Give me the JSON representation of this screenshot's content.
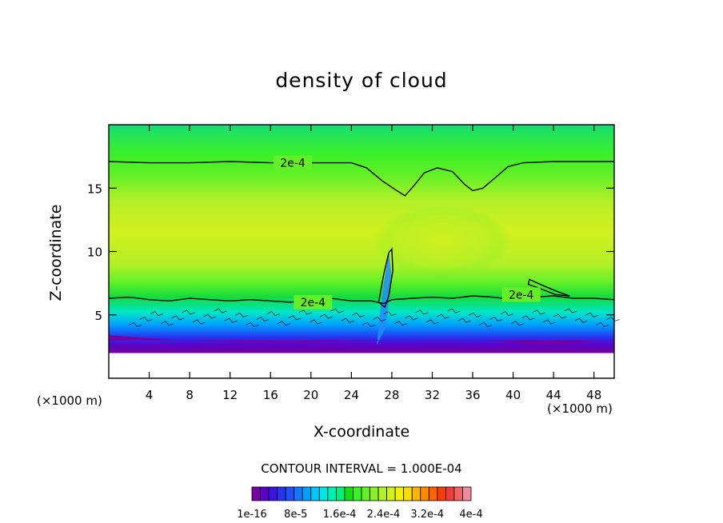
{
  "chart_data": {
    "type": "heatmap",
    "title": "density of cloud",
    "xlabel": "X-coordinate",
    "ylabel": "Z-coordinate",
    "x_unit_label": "(×1000 m)",
    "xlim": [
      0,
      50
    ],
    "ylim": [
      0,
      20
    ],
    "x_ticks": [
      4,
      8,
      12,
      16,
      20,
      24,
      28,
      32,
      36,
      40,
      44,
      48
    ],
    "y_ticks": [
      5,
      10,
      15
    ],
    "contour_interval_text": "CONTOUR INTERVAL = 1.000E-04",
    "contour_level_label": "2e-4",
    "colorbar": {
      "labels": [
        "1e-16",
        "8e-5",
        "1.6e-4",
        "2.4e-4",
        "3.2e-4",
        "4e-4"
      ],
      "colors": [
        "#7800a0",
        "#5a00c8",
        "#3c14dc",
        "#2832f0",
        "#1e50ff",
        "#1478ff",
        "#00a0ff",
        "#00c8ff",
        "#00e6e6",
        "#00f0b4",
        "#00f078",
        "#14dc14",
        "#3cf028",
        "#64f028",
        "#8cf028",
        "#b4f028",
        "#d2f01e",
        "#f0f000",
        "#ffdc00",
        "#ffb400",
        "#ff8c00",
        "#ff6400",
        "#ff3c00",
        "#f03c3c",
        "#f06464",
        "#f08ca0"
      ]
    }
  }
}
